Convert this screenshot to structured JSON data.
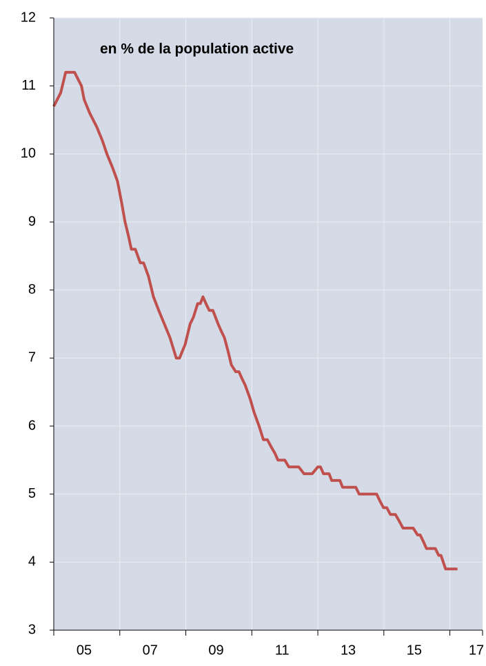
{
  "chart_data": {
    "type": "line",
    "title": "en % de la population active",
    "x": [
      2005.0,
      2005.21,
      2005.36,
      2005.63,
      2005.84,
      2005.92,
      2006.09,
      2006.3,
      2006.47,
      2006.61,
      2006.78,
      2006.93,
      2007.05,
      2007.16,
      2007.26,
      2007.35,
      2007.47,
      2007.62,
      2007.72,
      2007.87,
      2008.02,
      2008.18,
      2008.35,
      2008.52,
      2008.71,
      2008.81,
      2008.98,
      2009.13,
      2009.23,
      2009.36,
      2009.44,
      2009.52,
      2009.61,
      2009.71,
      2009.82,
      2009.9,
      2009.98,
      2010.07,
      2010.17,
      2010.28,
      2010.38,
      2010.51,
      2010.61,
      2010.7,
      2010.8,
      2010.95,
      2011.07,
      2011.22,
      2011.35,
      2011.47,
      2011.58,
      2011.7,
      2011.79,
      2012.0,
      2012.12,
      2012.42,
      2012.58,
      2012.83,
      2013.0,
      2013.08,
      2013.17,
      2013.34,
      2013.42,
      2013.67,
      2013.75,
      2014.15,
      2014.25,
      2014.78,
      2014.88,
      2014.99,
      2015.09,
      2015.2,
      2015.35,
      2015.47,
      2015.58,
      2015.89,
      2016.02,
      2016.1,
      2016.2,
      2016.29,
      2016.56,
      2016.66,
      2016.73,
      2016.87,
      2017.23
    ],
    "series": [
      {
        "color": "#c0504d",
        "values": [
          10.7,
          10.9,
          11.2,
          11.2,
          11.0,
          10.8,
          10.6,
          10.4,
          10.2,
          10.0,
          9.8,
          9.6,
          9.3,
          9.0,
          8.8,
          8.6,
          8.6,
          8.4,
          8.4,
          8.2,
          7.9,
          7.7,
          7.5,
          7.3,
          7.0,
          7.0,
          7.2,
          7.5,
          7.6,
          7.8,
          7.8,
          7.9,
          7.8,
          7.7,
          7.7,
          7.6,
          7.5,
          7.4,
          7.3,
          7.1,
          6.9,
          6.8,
          6.8,
          6.7,
          6.6,
          6.4,
          6.2,
          6.0,
          5.8,
          5.8,
          5.7,
          5.6,
          5.5,
          5.5,
          5.4,
          5.4,
          5.3,
          5.3,
          5.4,
          5.4,
          5.3,
          5.3,
          5.2,
          5.2,
          5.1,
          5.1,
          5.0,
          5.0,
          4.9,
          4.8,
          4.8,
          4.7,
          4.7,
          4.6,
          4.5,
          4.5,
          4.4,
          4.4,
          4.3,
          4.2,
          4.2,
          4.1,
          4.1,
          3.9,
          3.9
        ]
      }
    ],
    "xlim": [
      2005,
      2017.99
    ],
    "xticks": [
      {
        "value": 2005,
        "label": "05"
      },
      {
        "value": 2007,
        "label": "07"
      },
      {
        "value": 2009,
        "label": "09"
      },
      {
        "value": 2011,
        "label": "11"
      },
      {
        "value": 2013,
        "label": "13"
      },
      {
        "value": 2015,
        "label": "15"
      },
      {
        "value": 2017,
        "label": "17"
      }
    ],
    "ylim": [
      3,
      12
    ],
    "yticks": [
      3,
      4,
      5,
      6,
      7,
      8,
      9,
      10,
      11,
      12
    ],
    "grid": true,
    "background": "#d5dbe6"
  }
}
